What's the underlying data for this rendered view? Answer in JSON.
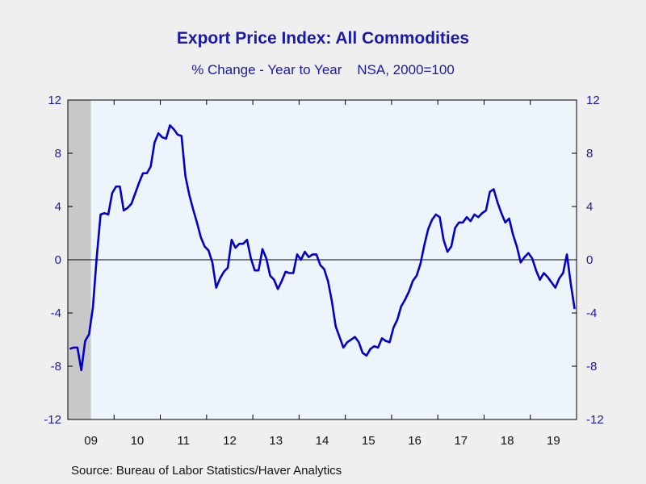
{
  "chart_data": {
    "type": "line",
    "title": "Export Price Index: All Commodities",
    "subtitle": "% Change - Year to Year    NSA, 2000=100",
    "source": "Source:  Bureau of Labor Statistics/Haver Analytics",
    "ylim": [
      -12,
      12
    ],
    "y_ticks": [
      -12,
      -8,
      -4,
      0,
      4,
      8,
      12
    ],
    "y_tick_labels": [
      "-12",
      "-8",
      "-4",
      "0",
      "4",
      "8",
      "12"
    ],
    "x_tick_labels": [
      "09",
      "10",
      "11",
      "12",
      "13",
      "14",
      "15",
      "16",
      "17",
      "18",
      "19"
    ],
    "x_start_year": 2009,
    "x_end_year": 2020,
    "recession_shading": [
      [
        2009.0,
        2009.5
      ]
    ],
    "colors": {
      "line": "#0000c8",
      "plot_bg": "#eef4fc",
      "shade": "#c8c8c8",
      "text": "#1a1aa8"
    },
    "series": [
      {
        "values": [
          -6.7,
          -6.6,
          -6.6,
          -8.3,
          -6.1,
          -5.6,
          -3.6,
          0.2,
          3.4,
          3.5,
          3.4,
          5.0,
          5.5,
          5.5,
          3.7,
          3.9,
          4.2,
          5.0,
          5.8,
          6.5,
          6.5,
          7.0,
          8.8,
          9.5,
          9.2,
          9.1,
          10.1,
          9.8,
          9.4,
          9.3,
          6.3,
          4.9,
          3.8,
          2.8,
          1.7,
          1.0,
          0.7,
          -0.2,
          -2.1,
          -1.4,
          -0.9,
          -0.6,
          1.5,
          0.9,
          1.2,
          1.2,
          1.5,
          0.1,
          -0.8,
          -0.8,
          0.8,
          0.1,
          -1.2,
          -1.5,
          -2.2,
          -1.6,
          -0.9,
          -1.0,
          -1.0,
          0.4,
          0.0,
          0.6,
          0.2,
          0.4,
          0.4,
          -0.4,
          -0.7,
          -1.6,
          -3.1,
          -5.0,
          -5.8,
          -6.6,
          -6.2,
          -6.0,
          -5.8,
          -6.2,
          -7.0,
          -7.2,
          -6.7,
          -6.5,
          -6.6,
          -5.9,
          -6.1,
          -6.2,
          -5.1,
          -4.5,
          -3.5,
          -3.0,
          -2.4,
          -1.6,
          -1.2,
          -0.3,
          1.1,
          2.3,
          3.0,
          3.4,
          3.2,
          1.5,
          0.6,
          1.0,
          2.4,
          2.8,
          2.8,
          3.2,
          2.9,
          3.4,
          3.2,
          3.5,
          3.7,
          5.1,
          5.3,
          4.3,
          3.5,
          2.8,
          3.1,
          1.9,
          1.0,
          -0.2,
          0.2,
          0.5,
          0.1,
          -0.8,
          -1.5,
          -1.0,
          -1.3,
          -1.7,
          -2.1,
          -1.4,
          -1.0,
          0.4,
          -1.8,
          -3.7
        ]
      }
    ]
  }
}
